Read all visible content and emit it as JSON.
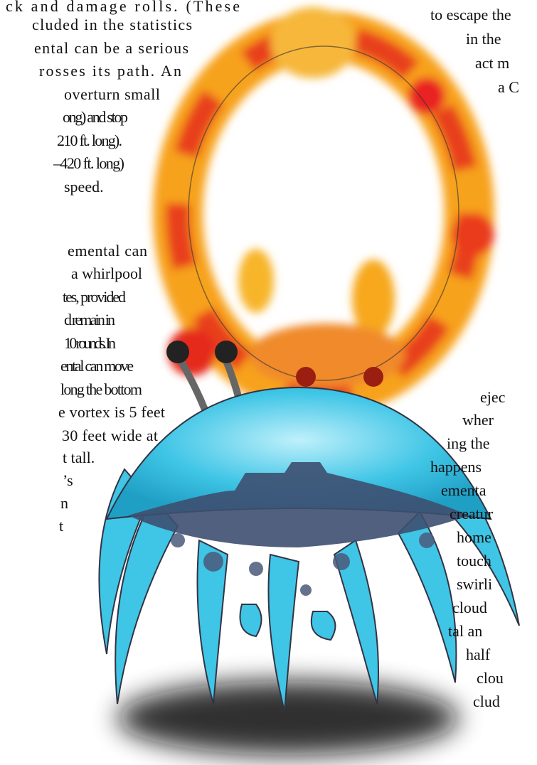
{
  "left_column": {
    "lines": [
      "ck and damage rolls. (These",
      "cluded in the statistics",
      "ental can be a serious",
      "rosses its path. An",
      "overturn small",
      "ong) and stop",
      "210 ft. long).",
      "–420 ft. long)",
      "speed.",
      "emental can",
      "a whirlpool",
      "tes, provided",
      "d remain in",
      "10 rounds. In",
      "ental can move",
      "long the bottom",
      "e vortex is 5 feet",
      "30 feet wide at",
      "t tall.",
      "’s",
      "n",
      "t"
    ]
  },
  "right_column": {
    "lines": [
      "to escape the",
      "in the",
      "act m",
      "a C",
      "ejec",
      "wher",
      "ing the",
      "happens",
      "ementa",
      "creatur",
      "home",
      "touch",
      "swirli",
      "cloud",
      "tal an",
      "half",
      "clou",
      "clud"
    ]
  }
}
